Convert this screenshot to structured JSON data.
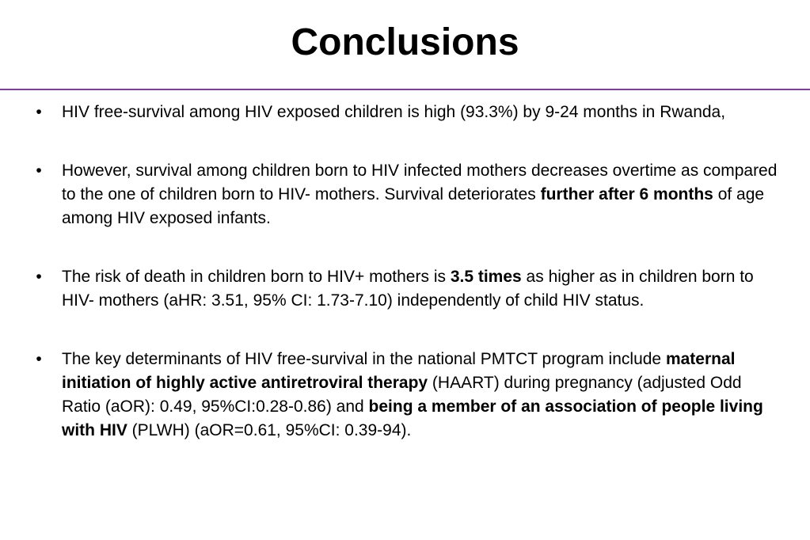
{
  "title": "Conclusions",
  "bullet_marker": "•",
  "bullets": [
    {
      "segments": [
        {
          "text": "HIV free-survival among HIV exposed children is high (93.3%) by 9-24 months in Rwanda,",
          "bold": false
        }
      ]
    },
    {
      "segments": [
        {
          "text": "However, survival among children born to HIV infected mothers decreases overtime as compared to the one of children born to HIV- mothers. Survival deteriorates ",
          "bold": false
        },
        {
          "text": "further after 6 months",
          "bold": true
        },
        {
          "text": " of age among HIV exposed infants.",
          "bold": false
        }
      ]
    },
    {
      "segments": [
        {
          "text": "The risk of death in children born to HIV+ mothers is ",
          "bold": false
        },
        {
          "text": "3.5 times",
          "bold": true
        },
        {
          "text": " as higher as in children born to HIV- mothers (aHR: 3.51, 95% CI: 1.73-7.10) independently of child HIV status.",
          "bold": false
        }
      ]
    },
    {
      "segments": [
        {
          "text": "The key determinants of HIV free-survival in the national PMTCT program include ",
          "bold": false
        },
        {
          "text": "maternal initiation of highly active antiretroviral therapy",
          "bold": true
        },
        {
          "text": " (HAART) during pregnancy (adjusted Odd Ratio (aOR): 0.49, 95%CI:0.28-0.86) and ",
          "bold": false
        },
        {
          "text": "being a member of an association of people living with HIV",
          "bold": true
        },
        {
          "text": " (PLWH) (aOR=0.61, 95%CI: 0.39-94).",
          "bold": false
        }
      ]
    }
  ]
}
